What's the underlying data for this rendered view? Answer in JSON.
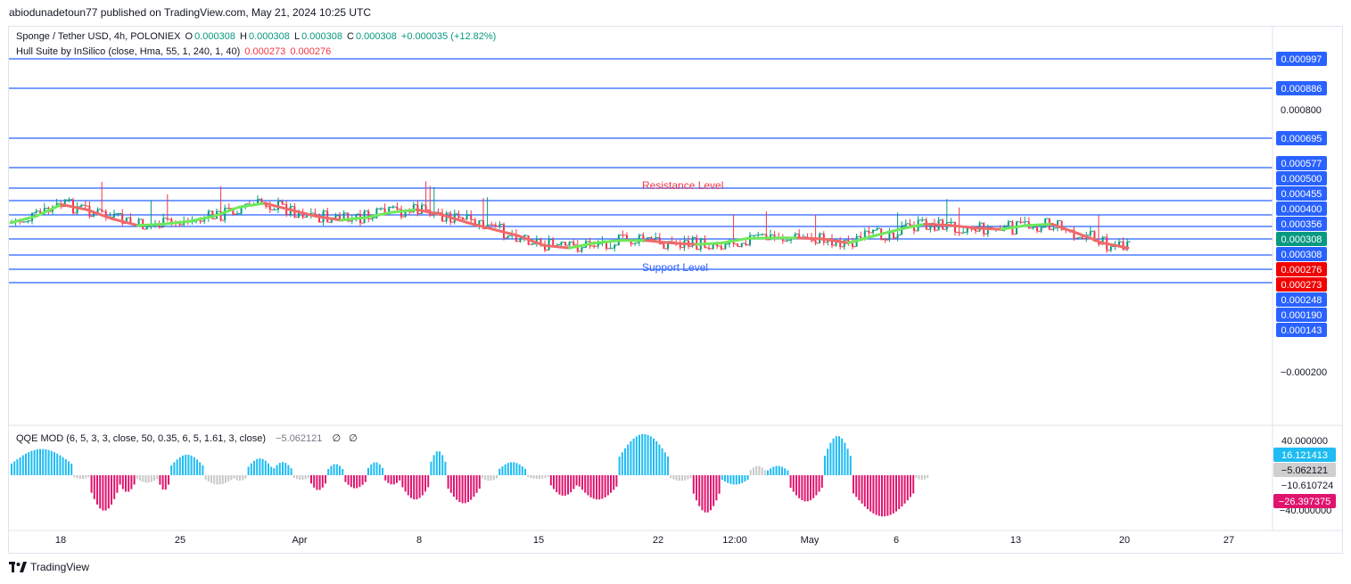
{
  "header": {
    "published": "abiodunadetoun77 published on TradingView.com, May 21, 2024 10:25 UTC"
  },
  "legend_main": {
    "symbol": "Sponge / Tether USD, 4h, POLONIEX",
    "o_label": "O",
    "o": "0.000308",
    "h_label": "H",
    "h": "0.000308",
    "l_label": "L",
    "l": "0.000308",
    "c_label": "C",
    "c": "0.000308",
    "change": "+0.000035 (+12.82%)"
  },
  "legend_hull": {
    "name": "Hull Suite by InSilico (close, Hma, 55, 1, 240, 1, 40)",
    "v1": "0.000273",
    "v2": "0.000276"
  },
  "legend_qqe": {
    "name": "QQE MOD (6, 5, 3, 3, close, 50, 0.35, 6, 5, 1.61, 3, close)",
    "value": "−5.062121",
    "sym1": "∅",
    "sym2": "∅"
  },
  "footer": {
    "logo_text": "TradingView"
  },
  "colors": {
    "up": "#089981",
    "down": "#f23645",
    "line_blue": "#2962ff",
    "hull_green": "#6ee85a",
    "hull_red": "#f06a6a",
    "qqe_blue": "#1ebcf2",
    "qqe_pink": "#e0136e",
    "qqe_grey": "#c8c8c8"
  },
  "chart_data": {
    "type": "candlestick",
    "x_ticks": [
      "18",
      "25",
      "Apr",
      "8",
      "15",
      "22",
      "12:00",
      "May",
      "6",
      "13",
      "20",
      "27"
    ],
    "y_ticks_plain": [
      "0.000800",
      "−0.000200"
    ],
    "horizontal_levels": [
      0.000997,
      0.000886,
      0.000695,
      0.000577,
      0.0005,
      0.000455,
      0.0004,
      0.000356,
      0.000308,
      0.000248,
      0.00019,
      0.000143
    ],
    "price_labels": [
      {
        "text": "0.000997",
        "value": 0.000997,
        "color": "#2962ff"
      },
      {
        "text": "0.000886",
        "value": 0.000886,
        "color": "#2962ff"
      },
      {
        "text": "0.000695",
        "value": 0.000695,
        "color": "#2962ff"
      },
      {
        "text": "0.000577",
        "value": 0.000577,
        "color": "#2962ff"
      },
      {
        "text": "0.000500",
        "value": 0.0005,
        "color": "#2962ff"
      },
      {
        "text": "0.000455",
        "value": 0.000455,
        "color": "#2962ff"
      },
      {
        "text": "0.000400",
        "value": 0.0004,
        "color": "#2962ff"
      },
      {
        "text": "0.000356",
        "value": 0.000356,
        "color": "#2962ff"
      },
      {
        "text": "0.000308",
        "value": 0.000308,
        "color": "#089981"
      },
      {
        "text": "0.000308",
        "value": 0.000308,
        "color": "#2962ff"
      },
      {
        "text": "0.000276",
        "value": 0.000276,
        "color": "#f20000"
      },
      {
        "text": "0.000273",
        "value": 0.000273,
        "color": "#f20000"
      },
      {
        "text": "0.000248",
        "value": 0.000248,
        "color": "#2962ff"
      },
      {
        "text": "0.000190",
        "value": 0.00019,
        "color": "#2962ff"
      },
      {
        "text": "0.000143",
        "value": 0.000143,
        "color": "#2962ff"
      }
    ],
    "annotations": [
      {
        "text": "Resistance Level",
        "color": "#f23645"
      },
      {
        "text": "Support Level",
        "color": "#2962ff"
      }
    ],
    "hull_suite": [
      0.00037,
      0.000395,
      0.00044,
      0.00042,
      0.000385,
      0.00036,
      0.000365,
      0.000375,
      0.000395,
      0.00043,
      0.000445,
      0.00042,
      0.000395,
      0.00038,
      0.00039,
      0.00041,
      0.00042,
      0.0004,
      0.00037,
      0.000345,
      0.00032,
      0.000295,
      0.00029,
      0.0003,
      0.000305,
      0.000305,
      0.0003,
      0.000297,
      0.0003,
      0.00031,
      0.000312,
      0.000312,
      0.000308,
      0.0003,
      0.00032,
      0.000345,
      0.000365,
      0.00036,
      0.00035,
      0.000345,
      0.00036,
      0.000365,
      0.00033,
      0.0003,
      0.00029
    ],
    "qqe": {
      "y_ticks_plain": [
        "40.000000",
        "−10.610724",
        "−40.000000"
      ],
      "value_labels": [
        {
          "text": "16.121413",
          "color": "#1ebcf2"
        },
        {
          "text": "−5.062121",
          "color": "#cfcfcf"
        },
        {
          "text": "−26.397375",
          "color": "#e0136e"
        }
      ]
    }
  }
}
